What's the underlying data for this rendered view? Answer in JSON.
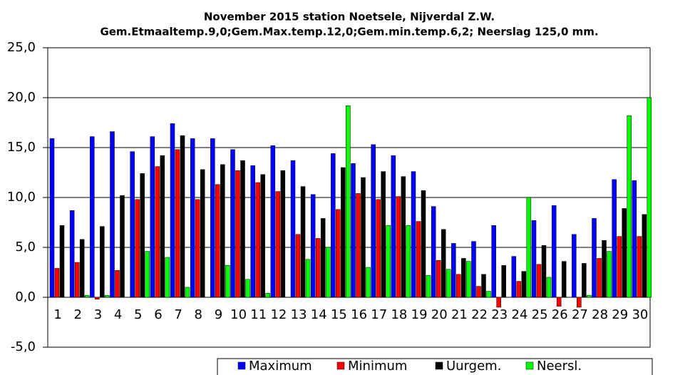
{
  "chart_data": {
    "type": "bar",
    "title": "November 2015 station Noetsele, Nijverdal Z.W.",
    "subtitle": "Gem.Etmaaltemp.9,0;Gem.Max.temp.12,0;Gem.min.temp.6,2; Neerslag 125,0 mm.",
    "categories": [
      "1",
      "2",
      "3",
      "4",
      "5",
      "6",
      "7",
      "8",
      "9",
      "10",
      "11",
      "12",
      "13",
      "14",
      "15",
      "16",
      "17",
      "18",
      "19",
      "20",
      "21",
      "22",
      "23",
      "24",
      "25",
      "26",
      "27",
      "28",
      "29",
      "30"
    ],
    "series": [
      {
        "name": "Maximum",
        "color": "#0000ff",
        "values": [
          15.9,
          8.7,
          16.1,
          16.6,
          14.6,
          16.1,
          17.4,
          15.9,
          15.9,
          14.8,
          13.2,
          15.2,
          13.7,
          10.3,
          14.4,
          13.4,
          15.3,
          14.2,
          12.6,
          9.1,
          5.4,
          5.6,
          7.2,
          4.1,
          7.7,
          9.2,
          6.3,
          7.9,
          11.8,
          11.7
        ]
      },
      {
        "name": "Minimum",
        "color": "#ff0000",
        "values": [
          2.9,
          3.5,
          -0.2,
          2.7,
          9.8,
          13.1,
          14.8,
          9.8,
          11.3,
          12.7,
          11.5,
          10.6,
          6.3,
          5.9,
          8.8,
          10.4,
          9.8,
          10.1,
          7.6,
          3.7,
          2.3,
          1.1,
          -1.0,
          1.6,
          3.3,
          -0.9,
          -1.0,
          3.9,
          6.1,
          6.1
        ]
      },
      {
        "name": "Uurgem.",
        "color": "#000000",
        "values": [
          7.2,
          5.8,
          7.1,
          10.2,
          12.4,
          14.2,
          16.2,
          12.8,
          13.3,
          13.7,
          12.3,
          12.7,
          11.1,
          7.9,
          13.0,
          12.0,
          12.6,
          12.1,
          10.7,
          6.8,
          3.9,
          2.3,
          3.2,
          2.6,
          5.2,
          3.6,
          3.4,
          5.7,
          8.9,
          8.3
        ]
      },
      {
        "name": "Neersl.",
        "color": "#00ff00",
        "values": [
          0,
          0.2,
          0.2,
          0,
          4.6,
          4.0,
          1.0,
          0,
          3.2,
          1.8,
          0.4,
          0,
          3.8,
          5.0,
          19.2,
          3.0,
          7.2,
          7.2,
          2.2,
          2.8,
          3.6,
          0.6,
          0,
          10.0,
          2.0,
          0,
          0.2,
          4.6,
          18.2,
          20.0
        ]
      }
    ],
    "ylim": [
      -5,
      25
    ],
    "yticks": [
      {
        "value": -5,
        "label": "-5,0"
      },
      {
        "value": 0,
        "label": "0,0"
      },
      {
        "value": 5,
        "label": "5,0"
      },
      {
        "value": 10,
        "label": "10,0"
      },
      {
        "value": 15,
        "label": "15,0"
      },
      {
        "value": 20,
        "label": "20,0"
      },
      {
        "value": 25,
        "label": "25,0"
      }
    ],
    "grid": true,
    "legend": "bottom"
  }
}
